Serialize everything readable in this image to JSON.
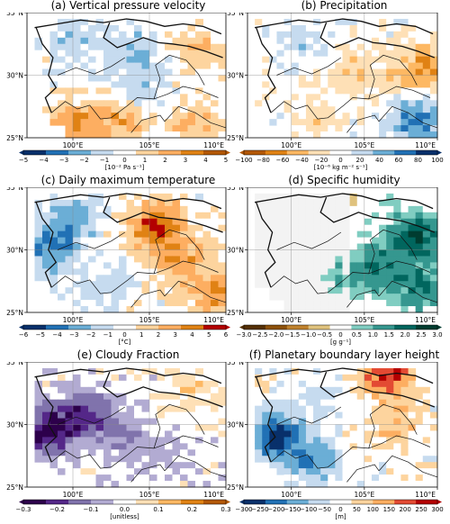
{
  "grid": {
    "cols": 26,
    "rows": 20,
    "lon_range": [
      97,
      110
    ],
    "lat_range": [
      25,
      35
    ]
  },
  "axes": {
    "lat_ticks": [
      "35°N",
      "30°N",
      "25°N"
    ],
    "lon_ticks": [
      "100°E",
      "105°E",
      "110°E"
    ]
  },
  "panels": [
    {
      "id": "a",
      "title": "(a) Vertical pressure velocity",
      "colormap": "RdBu_r_reversed",
      "cmap": [
        "#08306b",
        "#2171b5",
        "#6baed6",
        "#c6dbef",
        "#ffffff",
        "#fdd49e",
        "#fdae61",
        "#e08214",
        "#b35806"
      ],
      "cb_ticks": [
        "−5",
        "−4",
        "−3",
        "−2",
        "−1",
        "0",
        "1",
        "2",
        "3",
        "4",
        "5"
      ],
      "units": "[10⁻² Pa s⁻¹]",
      "fields": [
        {
          "lon": 100,
          "lat": 33,
          "v": -0.3
        },
        {
          "lon": 104,
          "lat": 32,
          "v": -0.4
        },
        {
          "lon": 108,
          "lat": 32,
          "v": 0.4
        },
        {
          "lon": 100,
          "lat": 26,
          "v": 0.6
        },
        {
          "lon": 103,
          "lat": 26.5,
          "v": 0.5
        },
        {
          "lon": 108,
          "lat": 26,
          "v": 0.4
        },
        {
          "lon": 104.5,
          "lat": 29,
          "v": -0.3
        }
      ]
    },
    {
      "id": "b",
      "title": "(b) Precipitation",
      "colormap": "BrBG_like",
      "cmap": [
        "#b35806",
        "#e08214",
        "#fdb863",
        "#fee0b6",
        "#ffffff",
        "#c6dbef",
        "#6baed6",
        "#2171b5",
        "#08306b"
      ],
      "cb_ticks": [
        "−100",
        "−80",
        "−60",
        "−40",
        "−20",
        "0",
        "20",
        "40",
        "60",
        "80",
        "100"
      ],
      "units": "[10⁻⁶ kg m⁻² s⁻¹]",
      "fields": [
        {
          "lon": 101,
          "lat": 32.5,
          "v": 0.25
        },
        {
          "lon": 104.5,
          "lat": 30.5,
          "v": -0.3
        },
        {
          "lon": 108.5,
          "lat": 26.5,
          "v": 0.8
        },
        {
          "lon": 108,
          "lat": 29.5,
          "v": -0.4
        },
        {
          "lon": 109.5,
          "lat": 31,
          "v": -0.5
        },
        {
          "lon": 102,
          "lat": 27,
          "v": -0.25
        }
      ]
    },
    {
      "id": "c",
      "title": "(c) Daily maximum temperature",
      "colormap": "RdBu_r",
      "cmap": [
        "#08306b",
        "#2171b5",
        "#6baed6",
        "#c6dbef",
        "#ffffff",
        "#fdd49e",
        "#fdae61",
        "#e08214",
        "#b30000"
      ],
      "cb_ticks": [
        "−6",
        "−5",
        "−4",
        "−3",
        "−2",
        "−1",
        "0",
        "1",
        "2",
        "3",
        "4",
        "5",
        "6"
      ],
      "units": "[°C]",
      "fields": [
        {
          "lon": 98.5,
          "lat": 30,
          "v": -0.7
        },
        {
          "lon": 100,
          "lat": 32.5,
          "v": -0.5
        },
        {
          "lon": 105.5,
          "lat": 32,
          "v": 0.9
        },
        {
          "lon": 107,
          "lat": 29,
          "v": 0.6
        },
        {
          "lon": 109.5,
          "lat": 26.5,
          "v": 0.6
        },
        {
          "lon": 102,
          "lat": 27,
          "v": -0.2
        }
      ]
    },
    {
      "id": "d",
      "title": "(d) Specific humidity",
      "colormap": "BrBG",
      "cmap": [
        "#543005",
        "#8c510a",
        "#bf812d",
        "#dfc27d",
        "#ffffff",
        "#80cdc1",
        "#35978f",
        "#01665e",
        "#003c30"
      ],
      "cb_ticks": [
        "−3.0",
        "−2.5",
        "−2.0",
        "−1.5",
        "−1.0",
        "−0.5",
        "0",
        "0.5",
        "1.0",
        "1.5",
        "2.0",
        "2.5",
        "3.0"
      ],
      "units": "[g g⁻¹]",
      "fields": [
        {
          "lon": 108.5,
          "lat": 31,
          "v": 0.9
        },
        {
          "lon": 106,
          "lat": 28.5,
          "v": 0.6
        },
        {
          "lon": 103,
          "lat": 27.5,
          "v": 0.3
        },
        {
          "lon": 109,
          "lat": 27,
          "v": 0.7
        }
      ]
    },
    {
      "id": "e",
      "title": "(e) Cloudy Fraction",
      "colormap": "PuOr",
      "cmap": [
        "#2d004b",
        "#542788",
        "#8073ac",
        "#b2abd2",
        "#ffffff",
        "#fee0b6",
        "#fdb863",
        "#e08214",
        "#b35806"
      ],
      "cb_ticks": [
        "−0.3",
        "−0.2",
        "−0.1",
        "0.0",
        "0.1",
        "0.2",
        "0.3"
      ],
      "units": "[unitless]",
      "fields": [
        {
          "lon": 98.5,
          "lat": 29.5,
          "v": -1.0
        },
        {
          "lon": 101,
          "lat": 31,
          "v": -0.7
        },
        {
          "lon": 103.5,
          "lat": 29,
          "v": -0.4
        },
        {
          "lon": 108,
          "lat": 33,
          "v": 0.3
        },
        {
          "lon": 106,
          "lat": 27,
          "v": -0.15
        }
      ]
    },
    {
      "id": "f",
      "title": "(f) Planetary boundary layer height",
      "colormap": "RdBu_r",
      "cmap": [
        "#08306b",
        "#2171b5",
        "#6baed6",
        "#c6dbef",
        "#ffffff",
        "#fdd49e",
        "#fdae61",
        "#e34a33",
        "#b30000"
      ],
      "cb_ticks": [
        "−300",
        "−250",
        "−200",
        "−150",
        "−100",
        "−50",
        "0",
        "50",
        "100",
        "150",
        "200",
        "250",
        "300"
      ],
      "units": "[m]",
      "fields": [
        {
          "lon": 99,
          "lat": 29,
          "v": -1.0
        },
        {
          "lon": 101.5,
          "lat": 27,
          "v": -0.6
        },
        {
          "lon": 106.5,
          "lat": 34,
          "v": 0.9
        },
        {
          "lon": 107,
          "lat": 30,
          "v": 0.4
        },
        {
          "lon": 102,
          "lat": 32.5,
          "v": -0.2
        }
      ]
    }
  ]
}
